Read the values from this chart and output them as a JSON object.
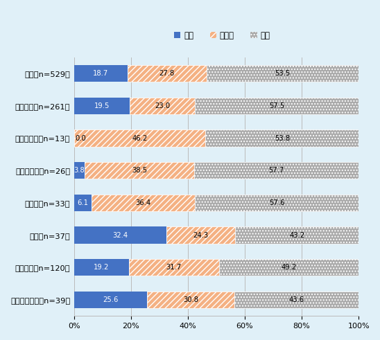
{
  "categories": [
    "総数（n=529）",
    "メキシコ（n=261）",
    "ベネズエラ（n=13）",
    "コロンビア（n=26）",
    "ペルー（n=33）",
    "チリ（n=37）",
    "ブラジル（n=120）",
    "アルゼンチン（n=39）"
  ],
  "kaizen": [
    18.7,
    19.5,
    0.0,
    3.8,
    6.1,
    32.4,
    19.2,
    25.6
  ],
  "yokobai": [
    27.8,
    23.0,
    46.2,
    38.5,
    36.4,
    24.3,
    31.7,
    30.8
  ],
  "akka": [
    53.5,
    57.5,
    53.8,
    57.7,
    57.6,
    43.2,
    49.2,
    43.6
  ],
  "kaizen_label": "改善",
  "yokobai_label": "横ばい",
  "akka_label": "悪化",
  "kaizen_color": "#4472C4",
  "yokobai_color": "#F4B183",
  "akka_color": "#AAAAAA",
  "background_color": "#E0F0F8",
  "bar_bg_color": "#FFFFFF",
  "xlabel_ticks": [
    0,
    20,
    40,
    60,
    80,
    100
  ]
}
